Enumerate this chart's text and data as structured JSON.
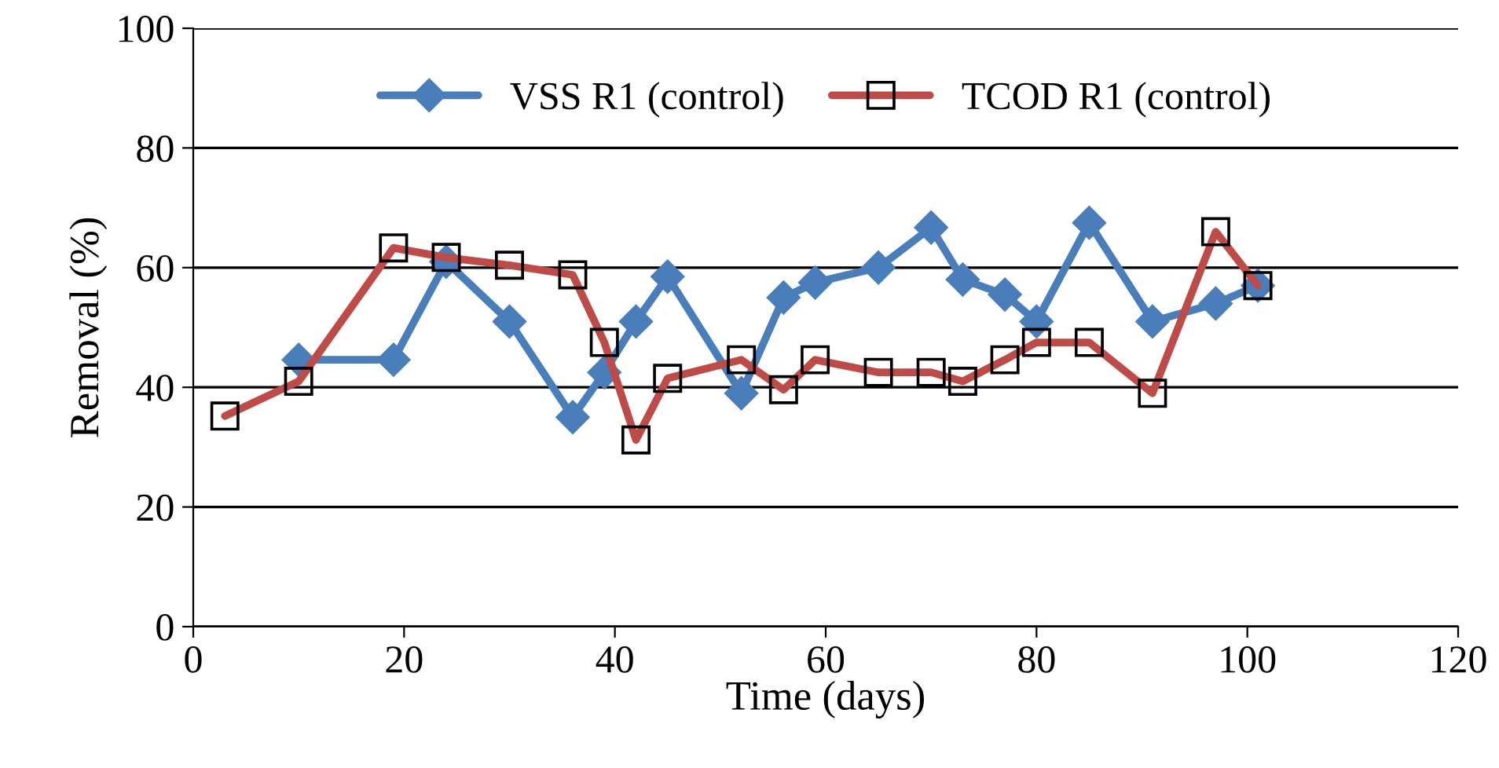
{
  "chart_data": {
    "type": "line",
    "xlabel": "Time (days)",
    "ylabel": "Removal (%)",
    "xlim": [
      0,
      120
    ],
    "xticks": [
      0,
      20,
      40,
      60,
      80,
      100,
      120
    ],
    "ylim": [
      0,
      100
    ],
    "yticks": [
      0,
      20,
      40,
      60,
      80,
      100
    ],
    "grid": "y",
    "legend": "top",
    "line_style": "solid",
    "series": [
      {
        "name": "VSS R1 (control)",
        "color": "#4a7ebb",
        "marker": "diamond",
        "x": [
          10,
          19,
          24,
          30,
          36,
          39,
          42,
          45,
          52,
          56,
          59,
          65,
          70,
          73,
          77,
          80,
          85,
          91,
          97,
          101
        ],
        "values": [
          44.6,
          44.6,
          61,
          51,
          35,
          42.5,
          51,
          58.5,
          39,
          55,
          57.5,
          60,
          66.7,
          58,
          55.5,
          51,
          67.5,
          51,
          54,
          57
        ]
      },
      {
        "name": "TCOD R1 (control)",
        "color": "#be4b48",
        "marker": "square",
        "x": [
          3,
          10,
          19,
          24,
          30,
          36,
          39,
          42,
          45,
          52,
          56,
          59,
          65,
          70,
          73,
          77,
          80,
          85,
          91,
          97,
          101
        ],
        "values": [
          35.2,
          41,
          63.3,
          61.7,
          60.4,
          58.8,
          47.5,
          31.2,
          41.5,
          44.6,
          39.6,
          44.6,
          42.5,
          42.5,
          41,
          44.6,
          47.5,
          47.5,
          39,
          66,
          57
        ]
      }
    ]
  }
}
